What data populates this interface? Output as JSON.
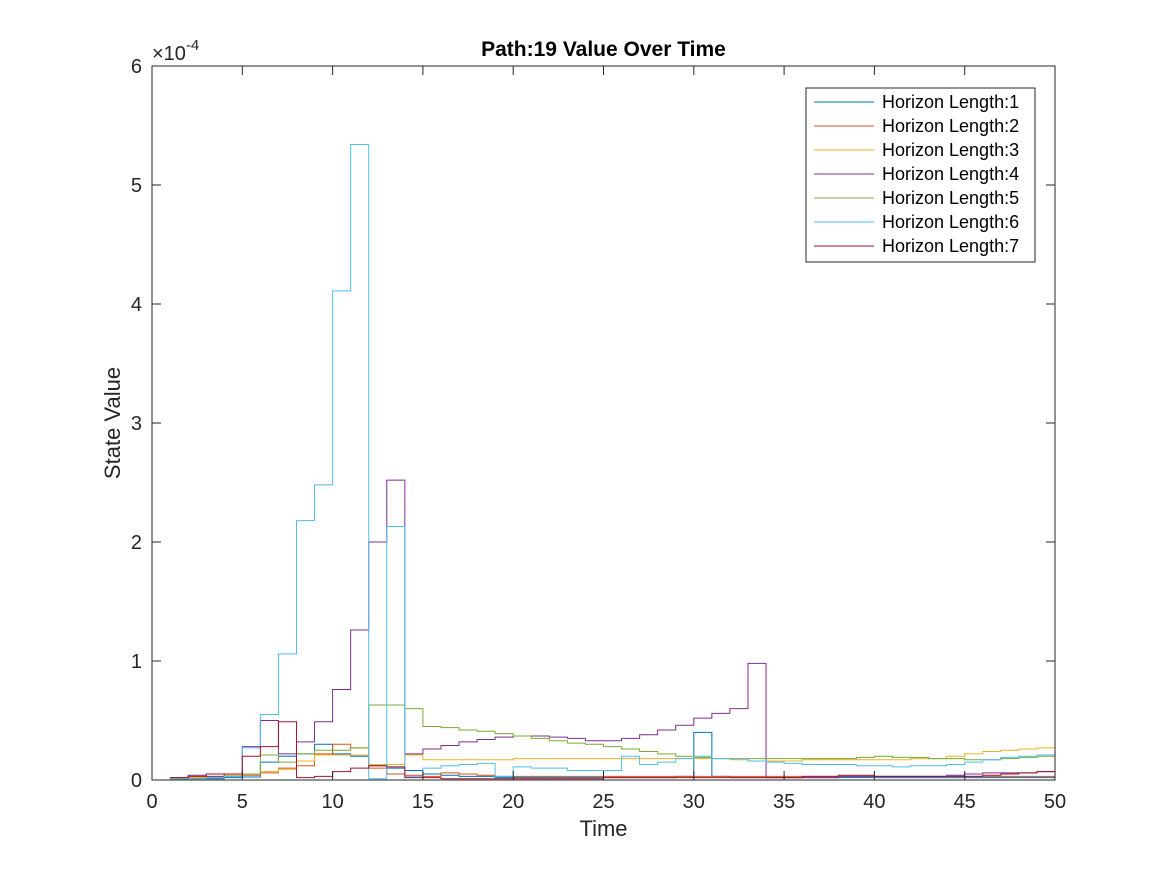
{
  "chart_data": {
    "type": "line",
    "style": "stairs",
    "title": "Path:19 Value Over Time",
    "xlabel": "Time",
    "ylabel": "State Value",
    "y_exponent_label": "×10",
    "y_exponent_power": "-4",
    "xlim": [
      0,
      50
    ],
    "ylim": [
      0,
      0.0006
    ],
    "x_ticks": [
      "0",
      "5",
      "10",
      "15",
      "20",
      "25",
      "30",
      "35",
      "40",
      "45",
      "50"
    ],
    "y_ticks": [
      "0",
      "1",
      "2",
      "3",
      "4",
      "5",
      "6"
    ],
    "legend_position": "top-right",
    "grid": false,
    "x": [
      1,
      2,
      3,
      4,
      5,
      6,
      7,
      8,
      9,
      10,
      11,
      12,
      13,
      14,
      15,
      16,
      17,
      18,
      19,
      20,
      21,
      22,
      23,
      24,
      25,
      26,
      27,
      28,
      29,
      30,
      31,
      32,
      33,
      34,
      35,
      36,
      37,
      38,
      39,
      40,
      41,
      42,
      43,
      44,
      45,
      46,
      47,
      48,
      49,
      50
    ],
    "series": [
      {
        "name": "Horizon Length:1",
        "color": "#0072BD",
        "values": [
          2e-06,
          1.5e-06,
          1e-06,
          2e-06,
          2.5e-06,
          1.5e-05,
          2e-05,
          2.2e-05,
          3e-05,
          2.2e-05,
          2e-05,
          1.2e-05,
          1e-05,
          8e-06,
          5e-06,
          4e-06,
          3e-06,
          3e-06,
          2e-06,
          2e-06,
          2e-06,
          2e-06,
          2e-06,
          2e-06,
          2e-06,
          2e-06,
          2e-06,
          2e-06,
          3e-06,
          4e-05,
          3e-06,
          2e-06,
          2e-06,
          2e-06,
          2e-06,
          2e-06,
          2e-06,
          2e-06,
          2e-06,
          2e-06,
          2e-06,
          2e-06,
          2e-06,
          2e-06,
          2e-06,
          2e-06,
          2e-06,
          2e-06,
          2e-06,
          2e-06
        ]
      },
      {
        "name": "Horizon Length:2",
        "color": "#D95319",
        "values": [
          1e-06,
          2e-06,
          2e-06,
          3e-06,
          4e-06,
          6e-06,
          1e-05,
          1.2e-05,
          2.2e-05,
          3e-05,
          2.7e-05,
          1e-05,
          5e-06,
          4e-06,
          3e-06,
          6e-06,
          5e-06,
          4e-06,
          3e-06,
          3e-06,
          3e-06,
          3e-06,
          3e-06,
          3e-06,
          3e-06,
          3e-06,
          3e-06,
          3e-06,
          3e-06,
          3e-06,
          3e-06,
          3e-06,
          3e-06,
          3e-06,
          3e-06,
          3e-06,
          3e-06,
          3e-06,
          3e-06,
          3e-06,
          3e-06,
          3e-06,
          3e-06,
          3e-06,
          3e-06,
          3e-06,
          3e-06,
          3e-06,
          3e-06,
          3e-06
        ]
      },
      {
        "name": "Horizon Length:3",
        "color": "#EDB120",
        "values": [
          2e-06,
          2e-06,
          3e-06,
          4e-06,
          5e-06,
          7e-06,
          9e-06,
          1.6e-05,
          2.1e-05,
          2.1e-05,
          2.1e-05,
          1.3e-05,
          1.3e-05,
          2.1e-05,
          1.7e-05,
          1.7e-05,
          1.7e-05,
          1.7e-05,
          1.7e-05,
          1.8e-05,
          1.8e-05,
          1.8e-05,
          1.8e-05,
          1.8e-05,
          1.8e-05,
          1.8e-05,
          1.8e-05,
          1.8e-05,
          1.8e-05,
          1.8e-05,
          1.8e-05,
          1.7e-05,
          1.6e-05,
          1.6e-05,
          1.6e-05,
          1.7e-05,
          1.7e-05,
          1.7e-05,
          1.7e-05,
          1.7e-05,
          1.7e-05,
          1.8e-05,
          1.8e-05,
          2e-05,
          2.2e-05,
          2.4e-05,
          2.5e-05,
          2.6e-05,
          2.7e-05,
          2.7e-05
        ]
      },
      {
        "name": "Horizon Length:4",
        "color": "#7E2F8E",
        "values": [
          2e-06,
          4e-06,
          3e-06,
          5e-06,
          2.8e-05,
          5e-05,
          2.2e-05,
          3.2e-05,
          4.9e-05,
          7.6e-05,
          0.000126,
          0.0002,
          0.000252,
          2.2e-05,
          2.6e-05,
          2.9e-05,
          3.2e-05,
          3.4e-05,
          3.6e-05,
          3.7e-05,
          3.7e-05,
          3.6e-05,
          3.5e-05,
          3.3e-05,
          3.3e-05,
          3.5e-05,
          3.8e-05,
          4.2e-05,
          4.6e-05,
          5.2e-05,
          5.6e-05,
          6e-05,
          9.8e-05,
          2e-06,
          2e-06,
          2e-06,
          2e-06,
          3e-06,
          3e-06,
          3e-06,
          3e-06,
          3e-06,
          3e-06,
          4e-06,
          5e-06,
          6e-06,
          6e-06,
          6e-06,
          7e-06,
          7e-06
        ]
      },
      {
        "name": "Horizon Length:5",
        "color": "#77AC30",
        "values": [
          1e-06,
          1e-06,
          2e-06,
          3e-06,
          5e-06,
          2.1e-05,
          1.5e-05,
          2.2e-05,
          2.5e-05,
          2.5e-05,
          2.7e-05,
          6.3e-05,
          6.3e-05,
          6e-05,
          4.5e-05,
          4.4e-05,
          4.2e-05,
          4.1e-05,
          3.9e-05,
          3.7e-05,
          3.5e-05,
          3.3e-05,
          3.1e-05,
          3e-05,
          2.8e-05,
          2.6e-05,
          2.4e-05,
          2.2e-05,
          2e-05,
          1.9e-05,
          1.8e-05,
          1.8e-05,
          1.8e-05,
          1.8e-05,
          1.8e-05,
          1.8e-05,
          1.8e-05,
          1.8e-05,
          1.9e-05,
          2e-05,
          1.9e-05,
          1.9e-05,
          1.8e-05,
          1.8e-05,
          1.7e-05,
          1.7e-05,
          1.8e-05,
          1.9e-05,
          2e-05,
          2e-05
        ]
      },
      {
        "name": "Horizon Length:6",
        "color": "#4DBEEE",
        "values": [
          1e-06,
          1e-06,
          2e-06,
          3e-06,
          2.7e-05,
          5.5e-05,
          0.000106,
          0.000218,
          0.000248,
          0.000411,
          0.000534,
          1e-06,
          0.000213,
          3e-06,
          1e-05,
          1.2e-05,
          1.3e-05,
          1.4e-05,
          3e-06,
          1.1e-05,
          1e-05,
          1e-05,
          8e-06,
          8e-06,
          8e-06,
          2e-05,
          1.3e-05,
          1.5e-05,
          1.8e-05,
          2e-05,
          1.8e-05,
          1.8e-05,
          1.6e-05,
          1.5e-05,
          1.4e-05,
          1.3e-05,
          1.3e-05,
          1.3e-05,
          1.2e-05,
          1.2e-05,
          1.1e-05,
          1.2e-05,
          1.2e-05,
          1.3e-05,
          1.5e-05,
          1.7e-05,
          1.9e-05,
          2e-05,
          2.1e-05,
          2.2e-05
        ]
      },
      {
        "name": "Horizon Length:7",
        "color": "#A2142F",
        "values": [
          2e-06,
          3e-06,
          5e-06,
          5e-06,
          2e-05,
          2.8e-05,
          4.9e-05,
          2e-06,
          3e-06,
          7e-06,
          1e-05,
          1.2e-05,
          1.1e-05,
          2e-06,
          2e-06,
          1e-06,
          1e-06,
          1e-06,
          1e-06,
          1e-06,
          1e-06,
          1e-06,
          1e-06,
          1e-06,
          2e-06,
          2e-06,
          2e-06,
          2e-06,
          2e-06,
          2e-06,
          2e-06,
          2e-06,
          2e-06,
          2e-06,
          2e-06,
          3e-06,
          3e-06,
          4e-06,
          4e-06,
          3e-06,
          3e-06,
          3e-06,
          3e-06,
          3e-06,
          3e-06,
          4e-06,
          5e-06,
          6e-06,
          7e-06,
          7e-06
        ]
      }
    ]
  }
}
